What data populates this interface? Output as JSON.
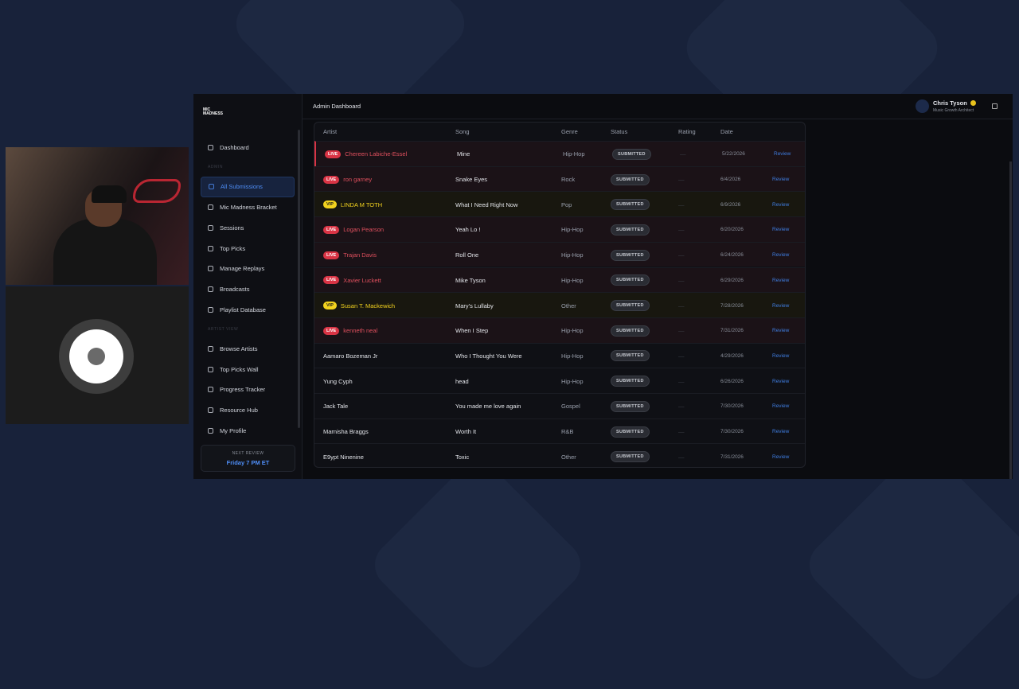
{
  "header": {
    "logo": "MIC MADNESS",
    "title": "Admin Dashboard",
    "user_name": "Chris Tyson",
    "user_role": "Music Growth Architect"
  },
  "sidebar": {
    "items": [
      {
        "label": "Dashboard"
      },
      {
        "section": "ADMIN"
      },
      {
        "label": "All Submissions",
        "active": true
      },
      {
        "label": "Mic Madness Bracket"
      },
      {
        "label": "Sessions"
      },
      {
        "label": "Top Picks"
      },
      {
        "label": "Manage Replays"
      },
      {
        "label": "Broadcasts"
      },
      {
        "label": "Playlist Database"
      },
      {
        "section": "ARTIST VIEW"
      },
      {
        "label": "Browse Artists"
      },
      {
        "label": "Top Picks Wall"
      },
      {
        "label": "Progress Tracker"
      },
      {
        "label": "Resource Hub"
      },
      {
        "label": "My Profile"
      }
    ],
    "footer_label": "NEXT REVIEW",
    "footer_value": "Friday 7 PM ET"
  },
  "table": {
    "columns": [
      "Artist",
      "Song",
      "Genre",
      "Status",
      "Rating",
      "Date"
    ],
    "rows": [
      {
        "badge": "LIVE",
        "artist": "Chereen Labiche-Essel",
        "song": "Mine",
        "genre": "Hip-Hop",
        "status": "SUBMITTED",
        "rating": "—",
        "date": "5/22/2026",
        "action": "Review"
      },
      {
        "badge": "LIVE",
        "artist": "ron garney",
        "song": "Snake Eyes",
        "genre": "Rock",
        "status": "SUBMITTED",
        "rating": "—",
        "date": "6/4/2026",
        "action": "Review"
      },
      {
        "badge": "VIP",
        "artist": "LINDA M TOTH",
        "song": "What I Need Right Now",
        "genre": "Pop",
        "status": "SUBMITTED",
        "rating": "—",
        "date": "6/9/2026",
        "action": "Review"
      },
      {
        "badge": "LIVE",
        "artist": "Logan Pearson",
        "song": "Yeah Lo !",
        "genre": "Hip-Hop",
        "status": "SUBMITTED",
        "rating": "—",
        "date": "6/20/2026",
        "action": "Review"
      },
      {
        "badge": "LIVE",
        "artist": "Trajan Davis",
        "song": "Roll One",
        "genre": "Hip-Hop",
        "status": "SUBMITTED",
        "rating": "—",
        "date": "6/24/2026",
        "action": "Review"
      },
      {
        "badge": "LIVE",
        "artist": "Xavier Luckett",
        "song": "Mike Tyson",
        "genre": "Hip-Hop",
        "status": "SUBMITTED",
        "rating": "—",
        "date": "6/29/2026",
        "action": "Review"
      },
      {
        "badge": "VIP",
        "artist": "Susan T. Mackewich",
        "song": "Mary's Lullaby",
        "genre": "Other",
        "status": "SUBMITTED",
        "rating": "—",
        "date": "7/28/2026",
        "action": "Review"
      },
      {
        "badge": "LIVE",
        "artist": "kenneth neal",
        "song": "When I Step",
        "genre": "Hip-Hop",
        "status": "SUBMITTED",
        "rating": "—",
        "date": "7/31/2026",
        "action": "Review"
      },
      {
        "artist": "Aamaro Bozeman Jr",
        "song": "Who I Thought You Were",
        "genre": "Hip-Hop",
        "status": "SUBMITTED",
        "rating": "—",
        "date": "4/29/2026",
        "action": "Review"
      },
      {
        "artist": "Yung Cyph",
        "song": "head",
        "genre": "Hip-Hop",
        "status": "SUBMITTED",
        "rating": "—",
        "date": "6/26/2026",
        "action": "Review"
      },
      {
        "artist": "Jack Tale",
        "song": "You made me love again",
        "genre": "Gospel",
        "status": "SUBMITTED",
        "rating": "—",
        "date": "7/30/2026",
        "action": "Review"
      },
      {
        "artist": "Marnisha Braggs",
        "song": "Worth It",
        "genre": "R&B",
        "status": "SUBMITTED",
        "rating": "—",
        "date": "7/30/2026",
        "action": "Review"
      },
      {
        "artist": "E9ypt Ninenine",
        "song": "Toxic",
        "genre": "Other",
        "status": "SUBMITTED",
        "rating": "—",
        "date": "7/31/2026",
        "action": "Review"
      }
    ]
  }
}
